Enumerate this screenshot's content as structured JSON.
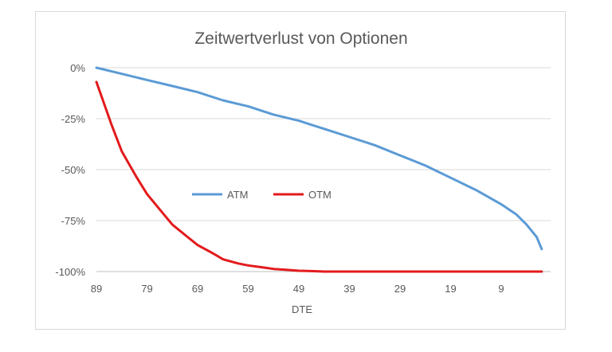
{
  "chart_data": {
    "type": "line",
    "title": "Zeitwertverlust von Optionen",
    "xlabel": "DTE",
    "ylabel": "",
    "x_ticks": [
      "89",
      "79",
      "69",
      "59",
      "49",
      "39",
      "29",
      "19",
      "9"
    ],
    "x_range": [
      89,
      0
    ],
    "y_ticks": [
      "0%",
      "-25%",
      "-50%",
      "-75%",
      "-100%"
    ],
    "ylim": [
      -100,
      0
    ],
    "grid": true,
    "legend_position": "inside-left-middle",
    "series": [
      {
        "name": "ATM",
        "color": "#5b9bd5",
        "x": [
          89,
          84,
          79,
          74,
          69,
          64,
          59,
          54,
          49,
          44,
          39,
          34,
          29,
          24,
          19,
          14,
          9,
          6,
          4,
          2,
          1
        ],
        "values": [
          0,
          -3,
          -6,
          -9,
          -12,
          -16,
          -19,
          -23,
          -26,
          -30,
          -34,
          -38,
          -43,
          -48,
          -54,
          -60,
          -67,
          -72,
          -77,
          -83,
          -89
        ]
      },
      {
        "name": "OTM",
        "color": "#e31a1c",
        "x": [
          89,
          86,
          84,
          81,
          79,
          76,
          74,
          71,
          69,
          66,
          64,
          61,
          59,
          56,
          54,
          51,
          49,
          46,
          44,
          39,
          29,
          19,
          9,
          1
        ],
        "values": [
          -7,
          -28,
          -41,
          -54,
          -62,
          -71,
          -77,
          -83,
          -87,
          -91,
          -94,
          -96,
          -97,
          -98,
          -98.7,
          -99.2,
          -99.6,
          -99.8,
          -100,
          -100,
          -100,
          -100,
          -100,
          -100
        ]
      }
    ]
  }
}
